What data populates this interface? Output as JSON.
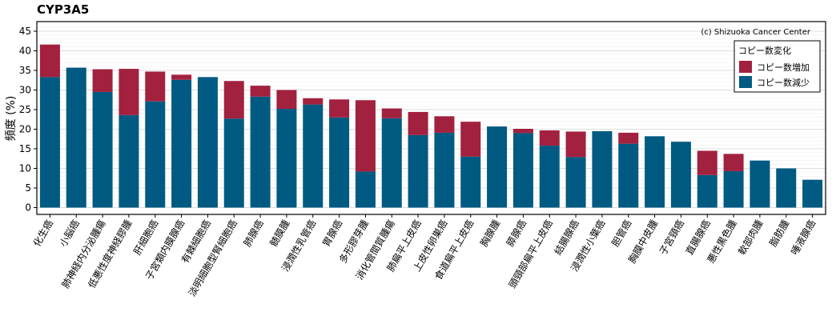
{
  "chart_data": {
    "type": "bar",
    "stacked": true,
    "title": "CYP3A5",
    "ylabel": "頻度 (%)",
    "xlabel": "",
    "ylim": [
      0,
      47
    ],
    "yticks": [
      0,
      5,
      10,
      15,
      20,
      25,
      30,
      35,
      40,
      45
    ],
    "grid": true,
    "legend_position": "top-right",
    "legend_title": "コピー数変化",
    "credit": "(c) Shizuoka Cancer Center",
    "categories": [
      "化生癌",
      "小脳癌",
      "肺神経内分泌腫瘍",
      "低悪性度神経膠腫",
      "肝細胞癌",
      "子宮類内膜腺癌",
      "有棘細胞癌",
      "淡明細胞型腎細胞癌",
      "肺腺癌",
      "髄膜腫",
      "浸潤性乳管癌",
      "胃腺癌",
      "多形膠芽腫",
      "消化管間質腫瘍",
      "肺扁平上皮癌",
      "上皮性卵巣癌",
      "食道扁平上皮癌",
      "胸腺腫",
      "膵腺癌",
      "頭頸部扁平上皮癌",
      "結腸腺癌",
      "浸潤性小葉癌",
      "胆管癌",
      "胸膜中皮腫",
      "子宮頸癌",
      "直腸腺癌",
      "悪性黒色腫",
      "軟部肉腫",
      "脂肪腫",
      "唾液腺癌"
    ],
    "series": [
      {
        "name": "コピー数減少",
        "color": "#005a82",
        "values": [
          33.3,
          35.7,
          29.5,
          23.6,
          27.1,
          32.6,
          33.3,
          22.7,
          28.3,
          25.2,
          26.3,
          23.0,
          9.2,
          22.8,
          18.5,
          19.1,
          13.0,
          20.7,
          19.0,
          15.8,
          12.9,
          19.5,
          16.3,
          18.2,
          16.8,
          8.3,
          9.3,
          12.0,
          10.0,
          7.1
        ]
      },
      {
        "name": "コピー数増加",
        "color": "#a2213f",
        "values": [
          8.3,
          0,
          5.8,
          11.8,
          7.6,
          1.3,
          0,
          9.6,
          2.8,
          4.8,
          1.6,
          4.6,
          18.2,
          2.5,
          5.9,
          4.2,
          8.9,
          0,
          1.1,
          3.9,
          6.5,
          0,
          2.8,
          0,
          0,
          6.2,
          4.4,
          0,
          0,
          0
        ]
      }
    ]
  }
}
